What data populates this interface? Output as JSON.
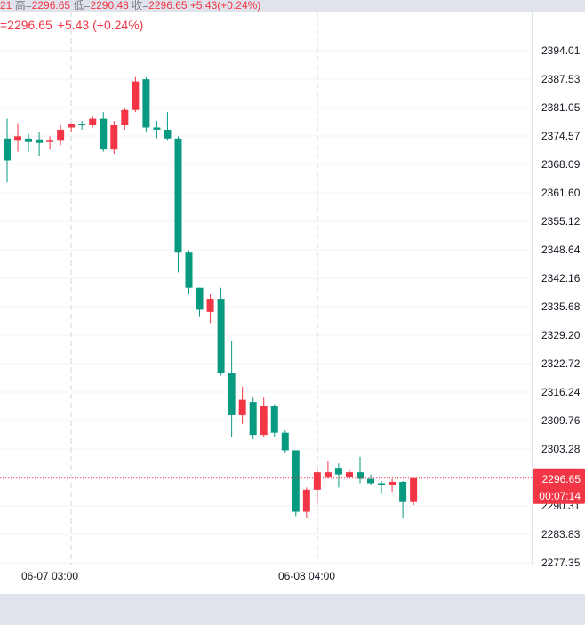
{
  "header": {
    "ohlc_line": [
      {
        "key": "",
        "val": "21"
      },
      {
        "key": "高=",
        "val": "2296.65"
      },
      {
        "key": "低=",
        "val": "2290.48"
      },
      {
        "key": "收=",
        "val": "2296.65"
      },
      {
        "key": "",
        "val": "+5.43(+0.24%)"
      }
    ],
    "legend_value": "=2296.65",
    "legend_change": "+5.43 (+0.24%)"
  },
  "colors": {
    "up": "#f23645",
    "down": "#089981",
    "grid": "#f0f3fa",
    "crosshair": "#d1d4dc",
    "price_line": "#f23645"
  },
  "price_tag": {
    "price": "2296.65",
    "countdown": "00:07:14"
  },
  "chart_data": {
    "type": "candlestick",
    "y_ticks": [
      "2394.01",
      "2387.53",
      "2381.05",
      "2374.57",
      "2368.09",
      "2361.60",
      "2355.12",
      "2348.64",
      "2342.16",
      "2335.68",
      "2329.20",
      "2322.72",
      "2316.24",
      "2309.76",
      "2303.28",
      "2296.79",
      "2290.31",
      "2283.83",
      "2277.35"
    ],
    "ylim": [
      2274.0,
      2397.5
    ],
    "x_labels": [
      "06-07 03:00",
      "06-08 04:00"
    ],
    "candles": [
      {
        "o": 2374.0,
        "h": 2378.5,
        "l": 2364.0,
        "c": 2369.0
      },
      {
        "o": 2373.5,
        "h": 2377.5,
        "l": 2371.0,
        "c": 2374.5
      },
      {
        "o": 2374.0,
        "h": 2375.0,
        "l": 2371.0,
        "c": 2373.2
      },
      {
        "o": 2373.8,
        "h": 2375.5,
        "l": 2370.0,
        "c": 2373.0
      },
      {
        "o": 2373.2,
        "h": 2374.5,
        "l": 2371.5,
        "c": 2373.5
      },
      {
        "o": 2373.5,
        "h": 2377.0,
        "l": 2372.5,
        "c": 2376.0
      },
      {
        "o": 2376.5,
        "h": 2377.5,
        "l": 2375.5,
        "c": 2377.2
      },
      {
        "o": 2377.2,
        "h": 2378.0,
        "l": 2376.0,
        "c": 2377.0
      },
      {
        "o": 2377.0,
        "h": 2379.0,
        "l": 2376.5,
        "c": 2378.5
      },
      {
        "o": 2378.5,
        "h": 2380.0,
        "l": 2371.0,
        "c": 2371.5
      },
      {
        "o": 2371.5,
        "h": 2378.0,
        "l": 2370.5,
        "c": 2377.0
      },
      {
        "o": 2377.0,
        "h": 2381.0,
        "l": 2376.0,
        "c": 2380.5
      },
      {
        "o": 2380.5,
        "h": 2388.0,
        "l": 2380.0,
        "c": 2387.0
      },
      {
        "o": 2387.5,
        "h": 2388.0,
        "l": 2375.5,
        "c": 2376.5
      },
      {
        "o": 2376.5,
        "h": 2378.0,
        "l": 2374.0,
        "c": 2376.0
      },
      {
        "o": 2376.0,
        "h": 2380.0,
        "l": 2373.5,
        "c": 2374.0
      },
      {
        "o": 2374.0,
        "h": 2374.5,
        "l": 2343.5,
        "c": 2348.0
      },
      {
        "o": 2348.0,
        "h": 2348.5,
        "l": 2338.5,
        "c": 2340.0
      },
      {
        "o": 2340.0,
        "h": 2340.0,
        "l": 2333.5,
        "c": 2335.0
      },
      {
        "o": 2334.5,
        "h": 2338.5,
        "l": 2332.0,
        "c": 2337.5
      },
      {
        "o": 2337.5,
        "h": 2340.0,
        "l": 2320.0,
        "c": 2320.5
      },
      {
        "o": 2320.5,
        "h": 2328.0,
        "l": 2306.0,
        "c": 2311.0
      },
      {
        "o": 2311.0,
        "h": 2317.5,
        "l": 2309.0,
        "c": 2314.5
      },
      {
        "o": 2314.0,
        "h": 2315.0,
        "l": 2305.5,
        "c": 2306.5
      },
      {
        "o": 2306.5,
        "h": 2315.0,
        "l": 2306.0,
        "c": 2313.0
      },
      {
        "o": 2313.0,
        "h": 2313.5,
        "l": 2306.0,
        "c": 2307.0
      },
      {
        "o": 2307.0,
        "h": 2307.5,
        "l": 2302.5,
        "c": 2303.0
      },
      {
        "o": 2303.0,
        "h": 2303.0,
        "l": 2288.0,
        "c": 2289.0
      },
      {
        "o": 2289.0,
        "h": 2294.5,
        "l": 2287.5,
        "c": 2294.0
      },
      {
        "o": 2294.0,
        "h": 2298.5,
        "l": 2291.0,
        "c": 2298.0
      },
      {
        "o": 2297.0,
        "h": 2300.5,
        "l": 2296.5,
        "c": 2298.0
      },
      {
        "o": 2299.0,
        "h": 2300.0,
        "l": 2294.5,
        "c": 2297.5
      },
      {
        "o": 2297.0,
        "h": 2298.5,
        "l": 2296.5,
        "c": 2298.0
      },
      {
        "o": 2298.0,
        "h": 2301.5,
        "l": 2295.5,
        "c": 2296.5
      },
      {
        "o": 2296.5,
        "h": 2297.5,
        "l": 2295.0,
        "c": 2295.5
      },
      {
        "o": 2295.5,
        "h": 2296.0,
        "l": 2293.0,
        "c": 2295.0
      },
      {
        "o": 2295.0,
        "h": 2296.5,
        "l": 2293.5,
        "c": 2295.8
      },
      {
        "o": 2295.8,
        "h": 2296.0,
        "l": 2287.5,
        "c": 2291.2
      },
      {
        "o": 2291.2,
        "h": 2296.65,
        "l": 2290.48,
        "c": 2296.65
      }
    ]
  }
}
